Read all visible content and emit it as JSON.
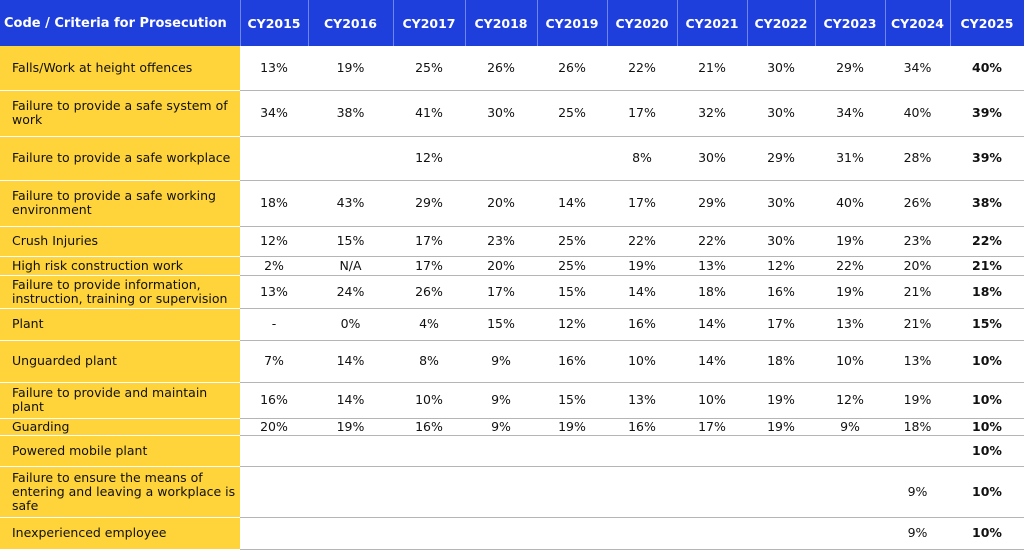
{
  "table": {
    "header": [
      "Code / Criteria for Prosecution",
      "CY2015",
      "CY2016",
      "CY2017",
      "CY2018",
      "CY2019",
      "CY2020",
      "CY2021",
      "CY2022",
      "CY2023",
      "CY2024",
      "CY2025"
    ],
    "rows": [
      [
        "Falls/Work at height offences",
        "13%",
        "19%",
        "25%",
        "26%",
        "26%",
        "22%",
        "21%",
        "30%",
        "29%",
        "34%",
        "40%"
      ],
      [
        "Failure to provide a safe system of work",
        "34%",
        "38%",
        "41%",
        "30%",
        "25%",
        "17%",
        "32%",
        "30%",
        "34%",
        "40%",
        "39%"
      ],
      [
        "Failure to provide a safe workplace",
        null,
        null,
        "12%",
        null,
        null,
        "8%",
        "30%",
        "29%",
        "31%",
        "28%",
        "39%"
      ],
      [
        "Failure to provide a safe working environment",
        "18%",
        "43%",
        "29%",
        "20%",
        "14%",
        "17%",
        "29%",
        "30%",
        "40%",
        "26%",
        "38%"
      ],
      [
        "Crush Injuries",
        "12%",
        "15%",
        "17%",
        "23%",
        "25%",
        "22%",
        "22%",
        "30%",
        "19%",
        "23%",
        "22%"
      ],
      [
        "High risk construction work",
        "2%",
        "N/A",
        "17%",
        "20%",
        "25%",
        "19%",
        "13%",
        "12%",
        "22%",
        "20%",
        "21%"
      ],
      [
        "Failure to provide information, instruction, training or supervision",
        "13%",
        "24%",
        "26%",
        "17%",
        "15%",
        "14%",
        "18%",
        "16%",
        "19%",
        "21%",
        "18%"
      ],
      [
        "Plant",
        "-",
        "0%",
        "4%",
        "15%",
        "12%",
        "16%",
        "14%",
        "17%",
        "13%",
        "21%",
        "15%"
      ],
      [
        "Unguarded plant",
        "7%",
        "14%",
        "8%",
        "9%",
        "16%",
        "10%",
        "14%",
        "18%",
        "10%",
        "13%",
        "10%"
      ],
      [
        "Failure to provide and maintain plant",
        "16%",
        "14%",
        "10%",
        "9%",
        "15%",
        "13%",
        "10%",
        "19%",
        "12%",
        "19%",
        "10%"
      ],
      [
        "Guarding",
        "20%",
        "19%",
        "16%",
        "9%",
        "19%",
        "16%",
        "17%",
        "19%",
        "9%",
        "18%",
        "10%"
      ],
      [
        "Powered mobile plant",
        null,
        null,
        null,
        null,
        null,
        null,
        null,
        null,
        null,
        null,
        "10%"
      ],
      [
        "Failure to ensure the means of entering and leaving a workplace is safe",
        null,
        null,
        null,
        null,
        null,
        null,
        null,
        null,
        null,
        "9%",
        "10%"
      ],
      [
        "Inexperienced employee",
        null,
        null,
        null,
        null,
        null,
        null,
        null,
        null,
        null,
        "9%",
        "10%"
      ]
    ]
  }
}
